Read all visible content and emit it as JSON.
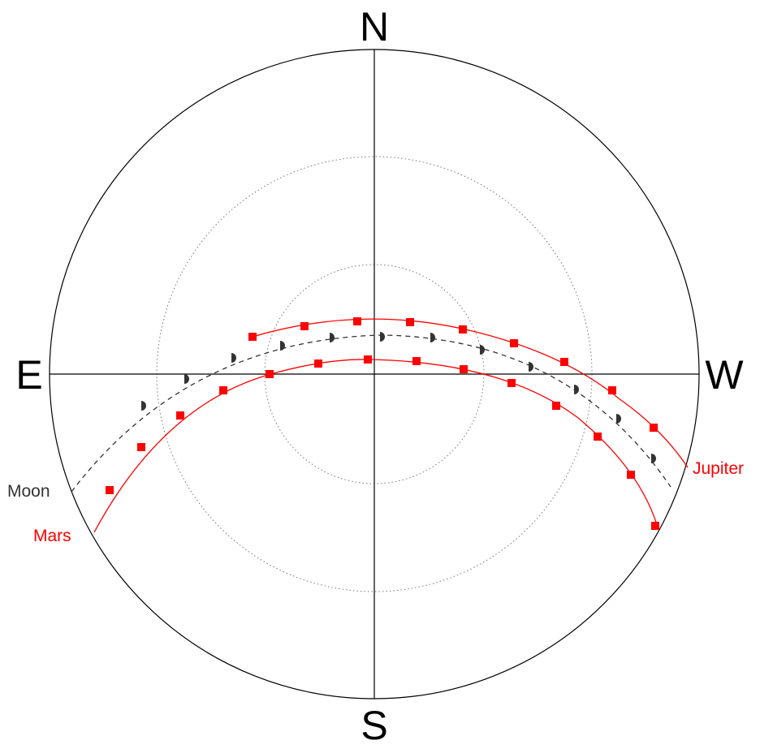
{
  "compass": {
    "north": "N",
    "south": "S",
    "east": "E",
    "west": "W"
  },
  "colors": {
    "background": "#ffffff",
    "horizon": "#000000",
    "grid": "#777777",
    "planet": "#ff0000",
    "moon": "#333333",
    "moon_label": "#333333"
  },
  "objects": [
    {
      "name": "Jupiter",
      "label": "Jupiter",
      "color": "#ff0000",
      "marker": "square",
      "line": "solid",
      "track_end": "right"
    },
    {
      "name": "Moon",
      "label": "Moon",
      "color": "#333333",
      "marker": "half-moon",
      "line": "dashed",
      "track_end": "left"
    },
    {
      "name": "Mars",
      "label": "Mars",
      "color": "#ff0000",
      "marker": "square",
      "line": "solid",
      "track_end": "left"
    }
  ]
}
